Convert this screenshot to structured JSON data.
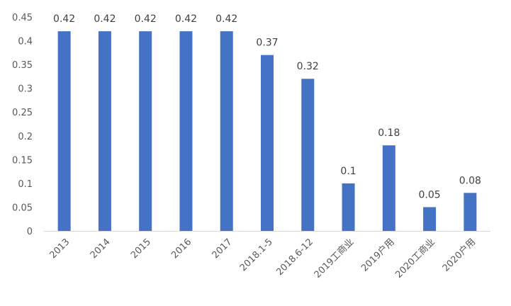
{
  "chart_data": {
    "type": "bar",
    "categories": [
      "2013",
      "2014",
      "2015",
      "2016",
      "2017",
      "2018.1-5",
      "2018.6-12",
      "2019工商业",
      "2019户用",
      "2020工商业",
      "2020户用"
    ],
    "values": [
      0.42,
      0.42,
      0.42,
      0.42,
      0.42,
      0.37,
      0.32,
      0.1,
      0.18,
      0.05,
      0.08
    ],
    "data_labels": [
      "0.42",
      "0.42",
      "0.42",
      "0.42",
      "0.42",
      "0.37",
      "0.32",
      "0.1",
      "0.18",
      "0.05",
      "0.08"
    ],
    "yticks": [
      "0",
      "0.05",
      "0.1",
      "0.15",
      "0.2",
      "0.25",
      "0.3",
      "0.35",
      "0.4",
      "0.45"
    ],
    "ylim": [
      0,
      0.45
    ],
    "title": "",
    "xlabel": "",
    "ylabel": "",
    "grid": false,
    "legend": "none",
    "bar_color": "#4472C4",
    "axis_color": "#D9D9D9"
  }
}
